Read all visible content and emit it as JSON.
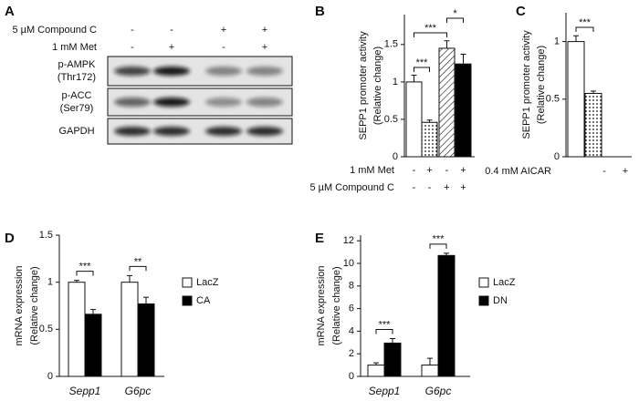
{
  "blot": {
    "label": "A",
    "conditions": [
      {
        "label": "5 µM Compound C",
        "signs": [
          "-",
          "-",
          "+",
          "+"
        ]
      },
      {
        "label": "1 mM Met",
        "signs": [
          "-",
          "+",
          "-",
          "+"
        ]
      }
    ],
    "bands": [
      {
        "label": "p-AMPK",
        "sub": "(Thr172)"
      },
      {
        "label": "p-ACC",
        "sub": "(Ser79)"
      },
      {
        "label": "GAPDH"
      }
    ]
  },
  "chart_data": [
    {
      "type": "bar",
      "label": "B",
      "y_label": "SEPP1 promoter activity",
      "y_sublabel": "(Relative change)",
      "values": [
        1.0,
        0.46,
        1.45,
        1.24
      ],
      "errors": [
        0.09,
        0.03,
        0.1,
        0.13
      ],
      "fills": [
        "white",
        "dotted",
        "hatched",
        "black"
      ],
      "ylim": [
        0,
        1.9
      ],
      "yticks": [
        0,
        0.5,
        1,
        1.5
      ],
      "conditions": [
        {
          "label": "1 mM Met",
          "signs": [
            "-",
            "+",
            "-",
            "+"
          ]
        },
        {
          "label": "5 µM Compound C",
          "signs": [
            "-",
            "-",
            "+",
            "+"
          ]
        }
      ],
      "annotations": [
        "***",
        "***",
        "*"
      ]
    },
    {
      "type": "bar",
      "label": "C",
      "y_label": "SEPP1 promoter activity",
      "y_sublabel": "(Relative change)",
      "values": [
        1.0,
        0.55
      ],
      "errors": [
        0.05,
        0.02
      ],
      "fills": [
        "white",
        "dotted"
      ],
      "ylim": [
        0,
        1.25
      ],
      "yticks": [
        0,
        0.5,
        1
      ],
      "conditions": [
        {
          "label": "0.4 mM AICAR",
          "signs": [
            "-",
            "+"
          ]
        }
      ],
      "annotations": [
        "***"
      ]
    },
    {
      "type": "grouped_bar",
      "label": "D",
      "y_label": "mRNA expression",
      "y_sublabel": "(Relative change)",
      "categories": [
        "Sepp1",
        "G6pc"
      ],
      "series": [
        {
          "name": "LacZ",
          "color": "white",
          "values": [
            1.0,
            1.0
          ],
          "errors": [
            0.02,
            0.07
          ]
        },
        {
          "name": "CA",
          "color": "black",
          "values": [
            0.66,
            0.77
          ],
          "errors": [
            0.05,
            0.07
          ]
        }
      ],
      "ylim": [
        0,
        1.5
      ],
      "yticks": [
        0,
        0.5,
        1,
        1.5
      ],
      "annotations": [
        "***",
        "**"
      ]
    },
    {
      "type": "grouped_bar",
      "label": "E",
      "y_label": "mRNA expression",
      "y_sublabel": "(Relative change)",
      "categories": [
        "Sepp1",
        "G6pc"
      ],
      "series": [
        {
          "name": "LacZ",
          "color": "white",
          "values": [
            1.0,
            1.0
          ],
          "errors": [
            0.2,
            0.6
          ]
        },
        {
          "name": "DN",
          "color": "black",
          "values": [
            2.95,
            10.7
          ],
          "errors": [
            0.4,
            0.2
          ]
        }
      ],
      "ylim": [
        0,
        12.5
      ],
      "yticks": [
        0,
        2,
        4,
        6,
        8,
        10,
        12
      ],
      "annotations": [
        "***",
        "***"
      ]
    }
  ]
}
